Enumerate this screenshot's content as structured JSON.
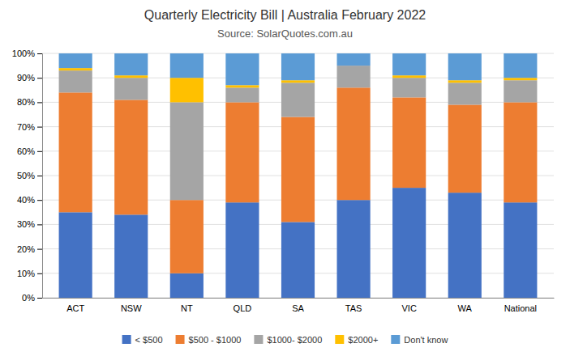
{
  "chart_data": {
    "type": "bar",
    "stacked": true,
    "title": "Quarterly Electricity Bill | Australia February 2022",
    "subtitle": "Source: SolarQuotes.com.au",
    "categories": [
      "ACT",
      "NSW",
      "NT",
      "QLD",
      "SA",
      "TAS",
      "VIC",
      "WA",
      "National"
    ],
    "series": [
      {
        "name": "< $500",
        "color": "#4472c4",
        "values": [
          35,
          34,
          10,
          39,
          31,
          40,
          45,
          43,
          39
        ]
      },
      {
        "name": "$500 - $1000",
        "color": "#ed7d31",
        "values": [
          49,
          47,
          30,
          41,
          43,
          46,
          37,
          36,
          41
        ]
      },
      {
        "name": "$1000- $2000",
        "color": "#a5a5a5",
        "values": [
          9,
          9,
          40,
          6,
          14,
          9,
          8,
          9,
          9
        ]
      },
      {
        "name": "$2000+",
        "color": "#ffc000",
        "values": [
          1,
          1,
          10,
          1,
          1,
          0,
          1,
          1,
          1
        ]
      },
      {
        "name": "Don't know",
        "color": "#5b9bd5",
        "values": [
          6,
          9,
          10,
          13,
          11,
          5,
          9,
          11,
          10
        ]
      }
    ],
    "ylim": [
      0,
      100
    ],
    "yticks": [
      {
        "value": 0,
        "label": "0%"
      },
      {
        "value": 10,
        "label": "10%"
      },
      {
        "value": 20,
        "label": "20%"
      },
      {
        "value": 30,
        "label": "30%"
      },
      {
        "value": 40,
        "label": "40%"
      },
      {
        "value": 50,
        "label": "50%"
      },
      {
        "value": 60,
        "label": "60%"
      },
      {
        "value": 70,
        "label": "70%"
      },
      {
        "value": 80,
        "label": "80%"
      },
      {
        "value": 90,
        "label": "90%"
      },
      {
        "value": 100,
        "label": "100%"
      }
    ],
    "grid": true,
    "legend": "bottom"
  }
}
